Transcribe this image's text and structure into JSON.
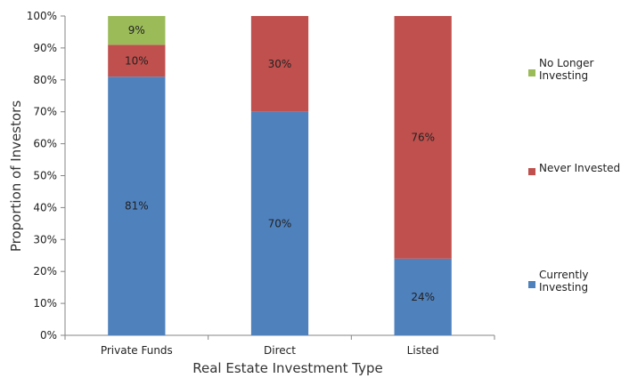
{
  "chart_data": {
    "type": "bar",
    "stacked": true,
    "title": "",
    "xlabel": "Real Estate Investment Type",
    "ylabel": "Proportion of Investors",
    "categories": [
      "Private Funds",
      "Direct",
      "Listed"
    ],
    "ylim": [
      0,
      100
    ],
    "yticks": [
      "0%",
      "10%",
      "20%",
      "30%",
      "40%",
      "50%",
      "60%",
      "70%",
      "80%",
      "90%",
      "100%"
    ],
    "series": [
      {
        "name": "Currently Investing",
        "color": "#4F81BD",
        "values": [
          81,
          70,
          24
        ],
        "labels": [
          "81%",
          "70%",
          "24%"
        ]
      },
      {
        "name": "Never Invested",
        "color": "#C0504D",
        "values": [
          10,
          30,
          76
        ],
        "labels": [
          "10%",
          "30%",
          "76%"
        ]
      },
      {
        "name": "No Longer Investing",
        "color": "#9BBB59",
        "values": [
          9,
          0,
          0
        ],
        "labels": [
          "9%",
          "",
          ""
        ]
      }
    ],
    "legend": {
      "position": "right",
      "order": [
        2,
        1,
        0
      ],
      "entries": [
        [
          "No Longer",
          "Investing"
        ],
        [
          "Never Invested"
        ],
        [
          "Currently",
          "Investing"
        ]
      ]
    },
    "grid": false
  }
}
